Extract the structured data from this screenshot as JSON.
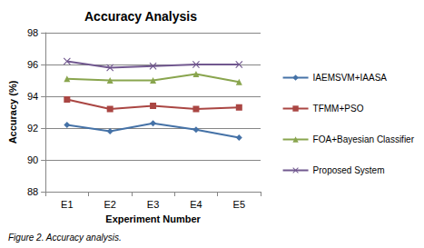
{
  "chart_data": {
    "type": "line",
    "title": "Accuracy Analysis",
    "caption": "Figure 2. Accuracy analysis.",
    "x_label": "Experiment Number",
    "y_label": "Accuracy (%)",
    "categories": [
      "E1",
      "E2",
      "E3",
      "E4",
      "E5"
    ],
    "series": [
      {
        "name": "IAEMSVM+IAASA",
        "color": "#4572A7",
        "marker": "diamond",
        "values": [
          92.2,
          91.8,
          92.3,
          91.9,
          91.4
        ]
      },
      {
        "name": "TFMM+PSO",
        "color": "#AA4643",
        "marker": "square",
        "values": [
          93.8,
          93.2,
          93.4,
          93.2,
          93.3
        ]
      },
      {
        "name": "FOA+Bayesian Classifier",
        "color": "#89A54E",
        "marker": "triangle",
        "values": [
          95.1,
          95.0,
          95.0,
          95.4,
          94.9
        ]
      },
      {
        "name": "Proposed System",
        "color": "#71588F",
        "marker": "x",
        "values": [
          96.2,
          95.8,
          95.9,
          96.0,
          96.0
        ]
      }
    ],
    "ylim": [
      88,
      98
    ],
    "yticks": [
      88,
      90,
      92,
      94,
      96,
      98
    ],
    "grid": true,
    "legend": "right"
  }
}
